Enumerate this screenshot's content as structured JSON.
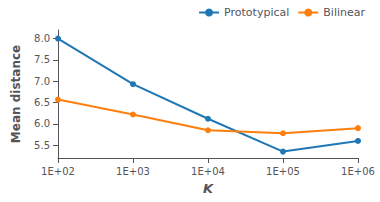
{
  "chart_data": {
    "type": "line",
    "x": [
      100,
      1000,
      10000,
      100000,
      1000000
    ],
    "series": [
      {
        "name": "Prototypical",
        "color": "#1f77b4",
        "marker": "circle",
        "values": [
          8.0,
          6.93,
          6.12,
          5.35,
          5.6
        ]
      },
      {
        "name": "Bilinear",
        "color": "#ff7f0e",
        "marker": "circle",
        "values": [
          6.57,
          6.22,
          5.85,
          5.78,
          5.9
        ]
      }
    ],
    "xlabel": "K",
    "ylabel": "Mean distance",
    "log": "x",
    "xlim": [
      100,
      1000000
    ],
    "xticks": [
      {
        "value": 100,
        "label": "1E+02"
      },
      {
        "value": 1000,
        "label": "1E+03"
      },
      {
        "value": 10000,
        "label": "1E+04"
      },
      {
        "value": 100000,
        "label": "1E+05"
      },
      {
        "value": 1000000,
        "label": "1E+06"
      }
    ],
    "ylim": [
      5.2,
      8.2
    ],
    "yticks": [
      5.5,
      {
        "value": 6.0,
        "label": "6.0"
      },
      6.5,
      {
        "value": 7.0,
        "label": "7.0"
      },
      7.5,
      {
        "value": 8.0,
        "label": "8.0"
      }
    ],
    "grid": false,
    "legend": "upper right"
  }
}
